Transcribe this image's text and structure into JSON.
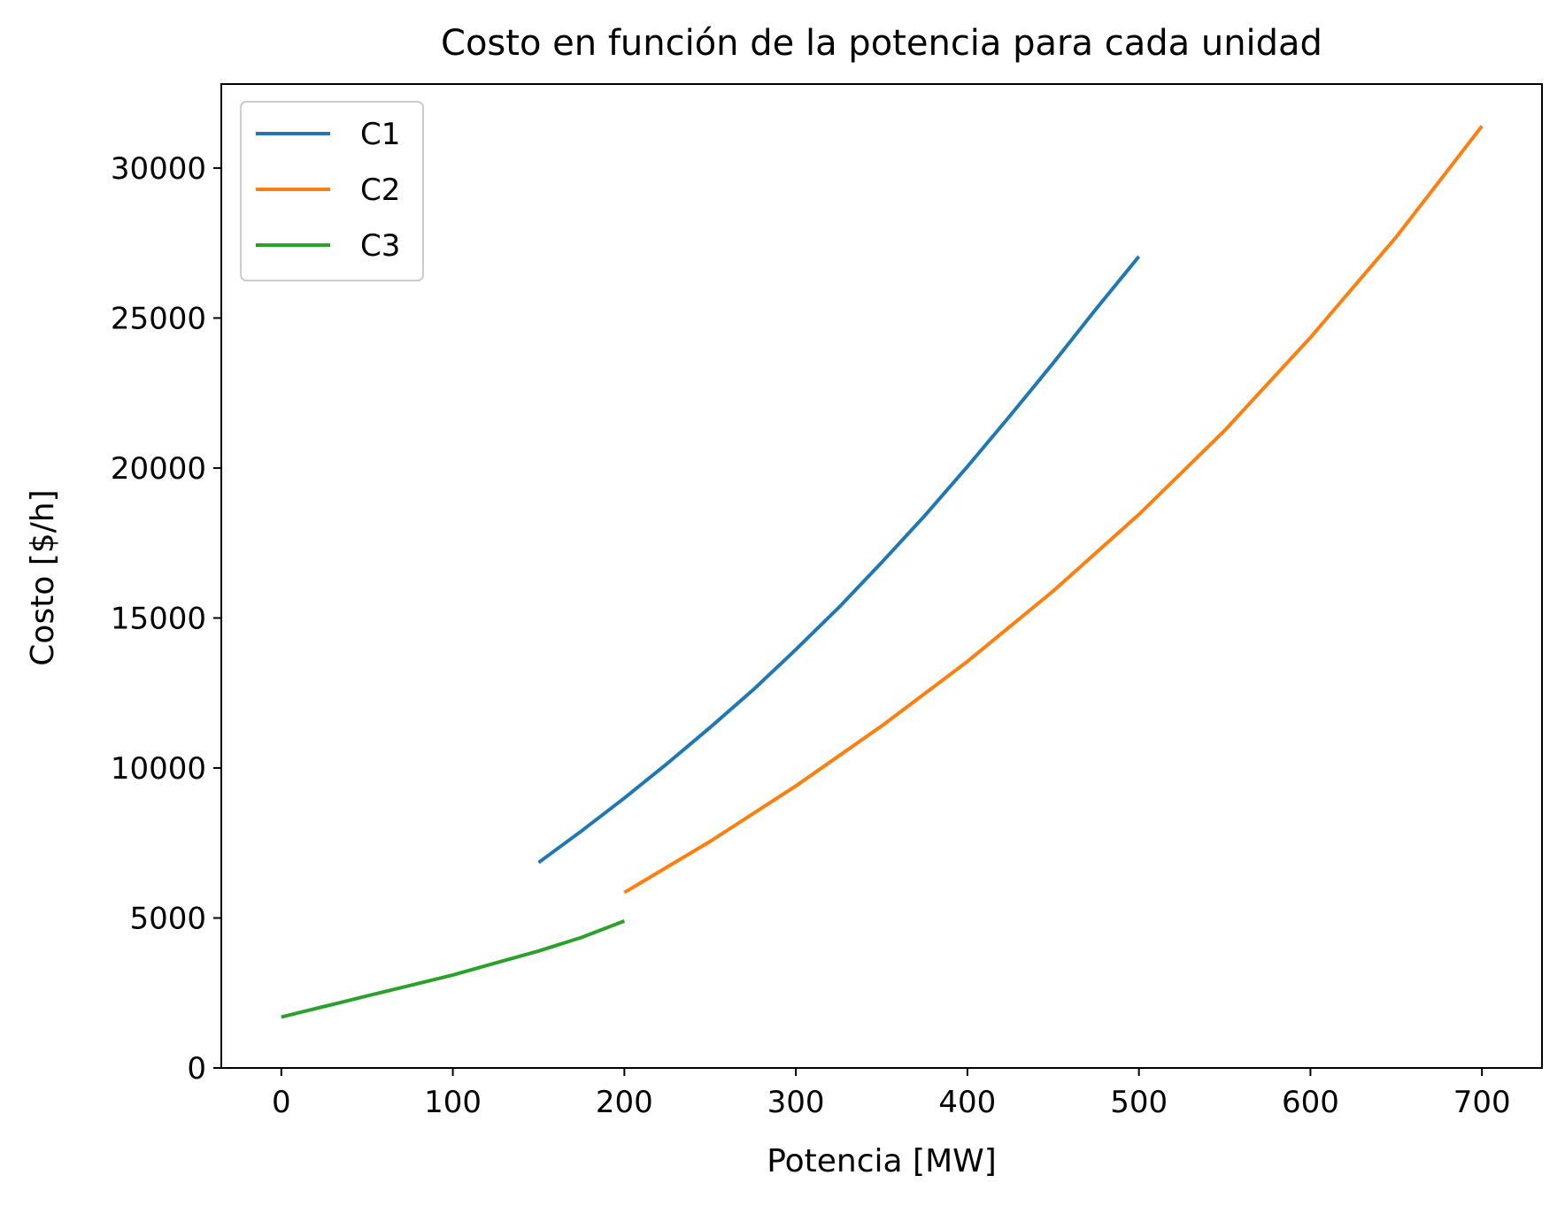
{
  "chart_data": {
    "type": "line",
    "title": "Costo en función de la potencia para cada unidad",
    "xlabel": "Potencia [MW]",
    "ylabel": "Costo [$/h]",
    "xlim": [
      -35,
      735
    ],
    "ylim": [
      0,
      32800
    ],
    "xticks": [
      0,
      100,
      200,
      300,
      400,
      500,
      600,
      700
    ],
    "yticks": [
      0,
      5000,
      10000,
      15000,
      20000,
      25000,
      30000
    ],
    "grid": false,
    "legend_position": "top-left",
    "series": [
      {
        "name": "C1",
        "color": "#1f77b4",
        "x": [
          150,
          175,
          200,
          225,
          250,
          275,
          300,
          325,
          350,
          375,
          400,
          425,
          450,
          475,
          500
        ],
        "y": [
          6850,
          7900,
          9000,
          10150,
          11350,
          12600,
          13950,
          15350,
          16850,
          18400,
          20050,
          21750,
          23500,
          25300,
          27050
        ]
      },
      {
        "name": "C2",
        "color": "#ff7f0e",
        "x": [
          200,
          250,
          300,
          350,
          400,
          450,
          500,
          550,
          600,
          650,
          700
        ],
        "y": [
          5850,
          7550,
          9400,
          11400,
          13550,
          15900,
          18450,
          21250,
          24350,
          27700,
          31400
        ]
      },
      {
        "name": "C3",
        "color": "#2ca02c",
        "x": [
          0,
          25,
          50,
          75,
          100,
          125,
          150,
          175,
          200
        ],
        "y": [
          1700,
          2050,
          2400,
          2750,
          3100,
          3500,
          3900,
          4350,
          4900
        ]
      }
    ]
  }
}
